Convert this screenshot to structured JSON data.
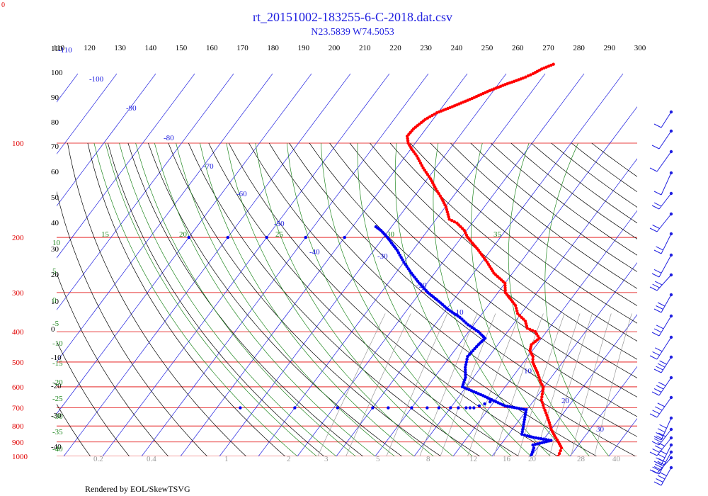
{
  "header": {
    "title": "rt_20151002-183255-6-C-2018.dat.csv",
    "subtitle": "N23.5839 W74.5053",
    "footer": "Rendered by EOL/SkewTSVG",
    "corner_label": "0"
  },
  "colors": {
    "title": "#2020e0",
    "isobar": "#e00000",
    "isotherm": "#2020e0",
    "dry_adiabat": "#000000",
    "moist_adiabat": "#228822",
    "mixing_ratio": "#999999",
    "temperature": "#ff0000",
    "dewpoint": "#0000ee",
    "wind_barb": "#2020e0"
  },
  "chart_data": {
    "type": "scatter",
    "title": "rt_20151002-183255-6-C-2018.dat.csv",
    "subtitle": "N23.5839 W74.5053",
    "xlabel": "",
    "ylabel": "",
    "pressure_axis": {
      "scale": "log",
      "range": [
        100,
        1000
      ]
    },
    "top_ticks": [
      "110",
      "120",
      "130",
      "140",
      "150",
      "160",
      "170",
      "180",
      "190",
      "200",
      "210",
      "220",
      "230",
      "240",
      "250",
      "260",
      "270",
      "280",
      "290",
      "300"
    ],
    "pressure_ticks": [
      "100",
      "200",
      "300",
      "400",
      "500",
      "600",
      "700",
      "800",
      "900",
      "1000"
    ],
    "left_ticks": [
      "110",
      "100",
      "90",
      "80",
      "70",
      "60",
      "50",
      "40",
      "30",
      "20",
      "10",
      "0",
      "-10",
      "-20",
      "-30",
      "-40"
    ],
    "green_left": [
      "10",
      "5",
      "0",
      "-5",
      "-10",
      "-15",
      "-20",
      "-25",
      "-30",
      "-35",
      "-40"
    ],
    "green_top": [
      "15",
      "20",
      "25",
      "30",
      "35"
    ],
    "isotherm_labels": [
      "-110",
      "-100",
      "-90",
      "-80",
      "-70",
      "-60",
      "-50",
      "-40",
      "-30",
      "-20",
      "-10",
      "10",
      "20",
      "30"
    ],
    "mixing_labels": [
      "0.2",
      "0.4",
      "1",
      "2",
      "3",
      "5",
      "8",
      "12",
      "16",
      "20",
      "28",
      "40"
    ],
    "series": [
      {
        "name": "temperature",
        "color": "#ff0000",
        "points": [
          [
            1000,
            27.0
          ],
          [
            960,
            26.5
          ],
          [
            940,
            26.2
          ],
          [
            900,
            24.3
          ],
          [
            860,
            22.1
          ],
          [
            820,
            20.0
          ],
          [
            780,
            18.2
          ],
          [
            740,
            16.2
          ],
          [
            700,
            14.0
          ],
          [
            660,
            11.8
          ],
          [
            620,
            10.5
          ],
          [
            600,
            9.8
          ],
          [
            580,
            8.2
          ],
          [
            560,
            6.9
          ],
          [
            540,
            5.5
          ],
          [
            500,
            2.3
          ],
          [
            480,
            1.3
          ],
          [
            460,
            -0.6
          ],
          [
            440,
            -1.4
          ],
          [
            420,
            -0.6
          ],
          [
            400,
            -2.9
          ],
          [
            390,
            -5.6
          ],
          [
            370,
            -7.5
          ],
          [
            350,
            -10.9
          ],
          [
            330,
            -13.0
          ],
          [
            300,
            -18.1
          ],
          [
            280,
            -20.0
          ],
          [
            260,
            -24.8
          ],
          [
            240,
            -28.6
          ],
          [
            220,
            -33.1
          ],
          [
            200,
            -38.4
          ],
          [
            190,
            -40.6
          ],
          [
            180,
            -43.9
          ],
          [
            175,
            -46.6
          ],
          [
            160,
            -49.8
          ],
          [
            150,
            -52.6
          ],
          [
            140,
            -55.9
          ],
          [
            130,
            -59.2
          ],
          [
            120,
            -63.2
          ],
          [
            110,
            -67.1
          ],
          [
            105,
            -69.5
          ],
          [
            100,
            -71.8
          ],
          [
            95,
            -73.4
          ],
          [
            90,
            -73.2
          ],
          [
            84,
            -72.0
          ],
          [
            80,
            -70.3
          ],
          [
            76,
            -67.1
          ],
          [
            72,
            -64.0
          ],
          [
            68,
            -61.0
          ],
          [
            65,
            -58.2
          ],
          [
            62,
            -54.8
          ],
          [
            60,
            -53.1
          ],
          [
            58,
            -51.8
          ],
          [
            56,
            -49.7
          ]
        ]
      },
      {
        "name": "dewpoint",
        "color": "#0000ee",
        "points": [
          [
            1000,
            20.0
          ],
          [
            940,
            19.1
          ],
          [
            920,
            18.3
          ],
          [
            890,
            22.1
          ],
          [
            870,
            17.0
          ],
          [
            860,
            15.1
          ],
          [
            850,
            13.4
          ],
          [
            710,
            9.8
          ],
          [
            690,
            3.6
          ],
          [
            660,
            -1.0
          ],
          [
            640,
            -4.0
          ],
          [
            600,
            -11.0
          ],
          [
            560,
            -12.0
          ],
          [
            520,
            -14.0
          ],
          [
            480,
            -15.5
          ],
          [
            440,
            -15.0
          ],
          [
            420,
            -14.5
          ],
          [
            400,
            -17.5
          ],
          [
            380,
            -21.5
          ],
          [
            360,
            -25.0
          ],
          [
            340,
            -29.5
          ],
          [
            320,
            -33.5
          ],
          [
            300,
            -38.0
          ],
          [
            280,
            -42.0
          ],
          [
            260,
            -46.0
          ],
          [
            240,
            -50.0
          ],
          [
            220,
            -54.0
          ],
          [
            200,
            -59.0
          ],
          [
            190,
            -62.0
          ],
          [
            185,
            -64.0
          ]
        ]
      }
    ],
    "isolated_dewpoint_points": [
      [
        700,
        -64
      ],
      [
        700,
        -50
      ],
      [
        700,
        -39
      ],
      [
        700,
        -30
      ],
      [
        700,
        -26
      ],
      [
        700,
        -20
      ],
      [
        700,
        -16
      ],
      [
        700,
        -13
      ],
      [
        700,
        -10
      ],
      [
        700,
        -8
      ],
      [
        700,
        -6
      ],
      [
        700,
        -5
      ],
      [
        700,
        -4
      ],
      [
        690,
        -3
      ],
      [
        680,
        -2
      ],
      [
        670,
        -1
      ],
      [
        660,
        -1
      ],
      [
        200,
        -70
      ],
      [
        200,
        -80
      ],
      [
        200,
        -90
      ],
      [
        200,
        -100
      ],
      [
        200,
        -110
      ]
    ],
    "wind_barbs": [
      {
        "p": 75
      },
      {
        "p": 86
      },
      {
        "p": 95
      },
      {
        "p": 108
      },
      {
        "p": 125
      },
      {
        "p": 140
      },
      {
        "p": 160
      },
      {
        "p": 185
      },
      {
        "p": 215
      },
      {
        "p": 255
      },
      {
        "p": 300
      },
      {
        "p": 355
      },
      {
        "p": 420
      },
      {
        "p": 490
      },
      {
        "p": 570
      },
      {
        "p": 650
      },
      {
        "p": 730
      },
      {
        "p": 800
      },
      {
        "p": 860
      },
      {
        "p": 910
      },
      {
        "p": 950
      },
      {
        "p": 985
      }
    ]
  }
}
